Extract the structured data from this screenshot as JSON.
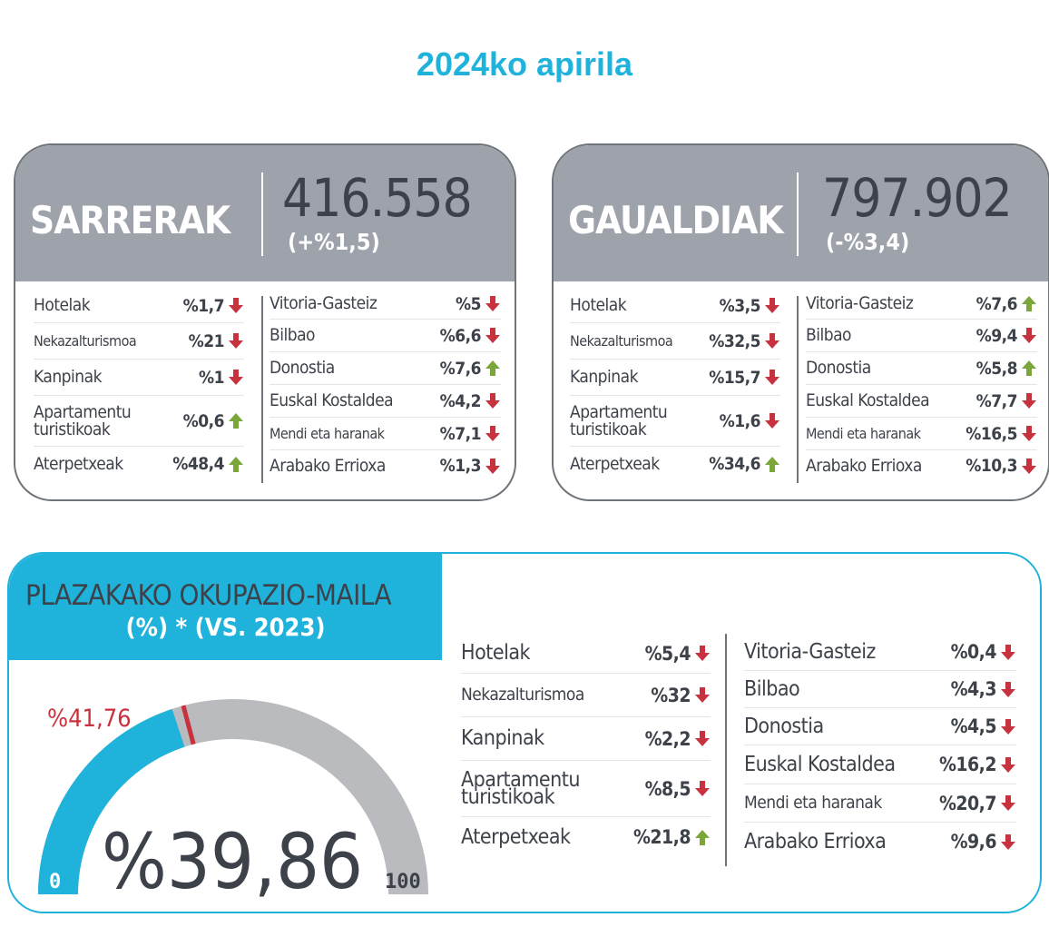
{
  "title": "2024ko apirila",
  "colors": {
    "accent": "#1fb3dc",
    "header_gray": "#9ea3ab",
    "down": "#c8323f",
    "up": "#7aa63a",
    "text": "#3d4149"
  },
  "sarrerak": {
    "label": "SARRERAK",
    "total": "416.558",
    "change": "(+%1,5)",
    "types": [
      {
        "name": "Hotelak",
        "value": "%1,7",
        "trend": "down"
      },
      {
        "name": "Nekazalturismoa",
        "value": "%21",
        "trend": "down"
      },
      {
        "name": "Kanpinak",
        "value": "%1",
        "trend": "down"
      },
      {
        "name": "Apartamentu turistikoak",
        "value": "%0,6",
        "trend": "up"
      },
      {
        "name": "Aterpetxeak",
        "value": "%48,4",
        "trend": "up"
      }
    ],
    "zones": [
      {
        "name": "Vitoria-Gasteiz",
        "value": "%5",
        "trend": "down"
      },
      {
        "name": "Bilbao",
        "value": "%6,6",
        "trend": "down"
      },
      {
        "name": "Donostia",
        "value": "%7,6",
        "trend": "up"
      },
      {
        "name": "Euskal Kostaldea",
        "value": "%4,2",
        "trend": "down"
      },
      {
        "name": "Mendi eta haranak",
        "value": "%7,1",
        "trend": "down"
      },
      {
        "name": "Arabako Errioxa",
        "value": "%1,3",
        "trend": "down"
      }
    ]
  },
  "gaualdiak": {
    "label": "GAUALDIAK",
    "total": "797.902",
    "change": "(-%3,4)",
    "types": [
      {
        "name": "Hotelak",
        "value": "%3,5",
        "trend": "down"
      },
      {
        "name": "Nekazalturismoa",
        "value": "%32,5",
        "trend": "down"
      },
      {
        "name": "Kanpinak",
        "value": "%15,7",
        "trend": "down"
      },
      {
        "name": "Apartamentu turistikoak",
        "value": "%1,6",
        "trend": "down"
      },
      {
        "name": "Aterpetxeak",
        "value": "%34,6",
        "trend": "up"
      }
    ],
    "zones": [
      {
        "name": "Vitoria-Gasteiz",
        "value": "%7,6",
        "trend": "up"
      },
      {
        "name": "Bilbao",
        "value": "%9,4",
        "trend": "down"
      },
      {
        "name": "Donostia",
        "value": "%5,8",
        "trend": "up"
      },
      {
        "name": "Euskal Kostaldea",
        "value": "%7,7",
        "trend": "down"
      },
      {
        "name": "Mendi eta haranak",
        "value": "%16,5",
        "trend": "down"
      },
      {
        "name": "Arabako Errioxa",
        "value": "%10,3",
        "trend": "down"
      }
    ]
  },
  "okupazioa": {
    "title_line1": "PLAZAKAKO OKUPAZIO-MAILA",
    "title_line2": "(%) * (VS. 2023)",
    "gauge": {
      "value": 39.86,
      "value_label": "%39,86",
      "previous": 41.76,
      "previous_label": "%41,76",
      "min_label": "0",
      "max_label": "100",
      "min": 0,
      "max": 100
    },
    "types": [
      {
        "name": "Hotelak",
        "value": "%5,4",
        "trend": "down"
      },
      {
        "name": "Nekazalturismoa",
        "value": "%32",
        "trend": "down"
      },
      {
        "name": "Kanpinak",
        "value": "%2,2",
        "trend": "down"
      },
      {
        "name": "Apartamentu turistikoak",
        "value": "%8,5",
        "trend": "down"
      },
      {
        "name": "Aterpetxeak",
        "value": "%21,8",
        "trend": "up"
      }
    ],
    "zones": [
      {
        "name": "Vitoria-Gasteiz",
        "value": "%0,4",
        "trend": "down"
      },
      {
        "name": "Bilbao",
        "value": "%4,3",
        "trend": "down"
      },
      {
        "name": "Donostia",
        "value": "%4,5",
        "trend": "down"
      },
      {
        "name": "Euskal Kostaldea",
        "value": "%16,2",
        "trend": "down"
      },
      {
        "name": "Mendi eta haranak",
        "value": "%20,7",
        "trend": "down"
      },
      {
        "name": "Arabako Errioxa",
        "value": "%9,6",
        "trend": "down"
      }
    ]
  }
}
